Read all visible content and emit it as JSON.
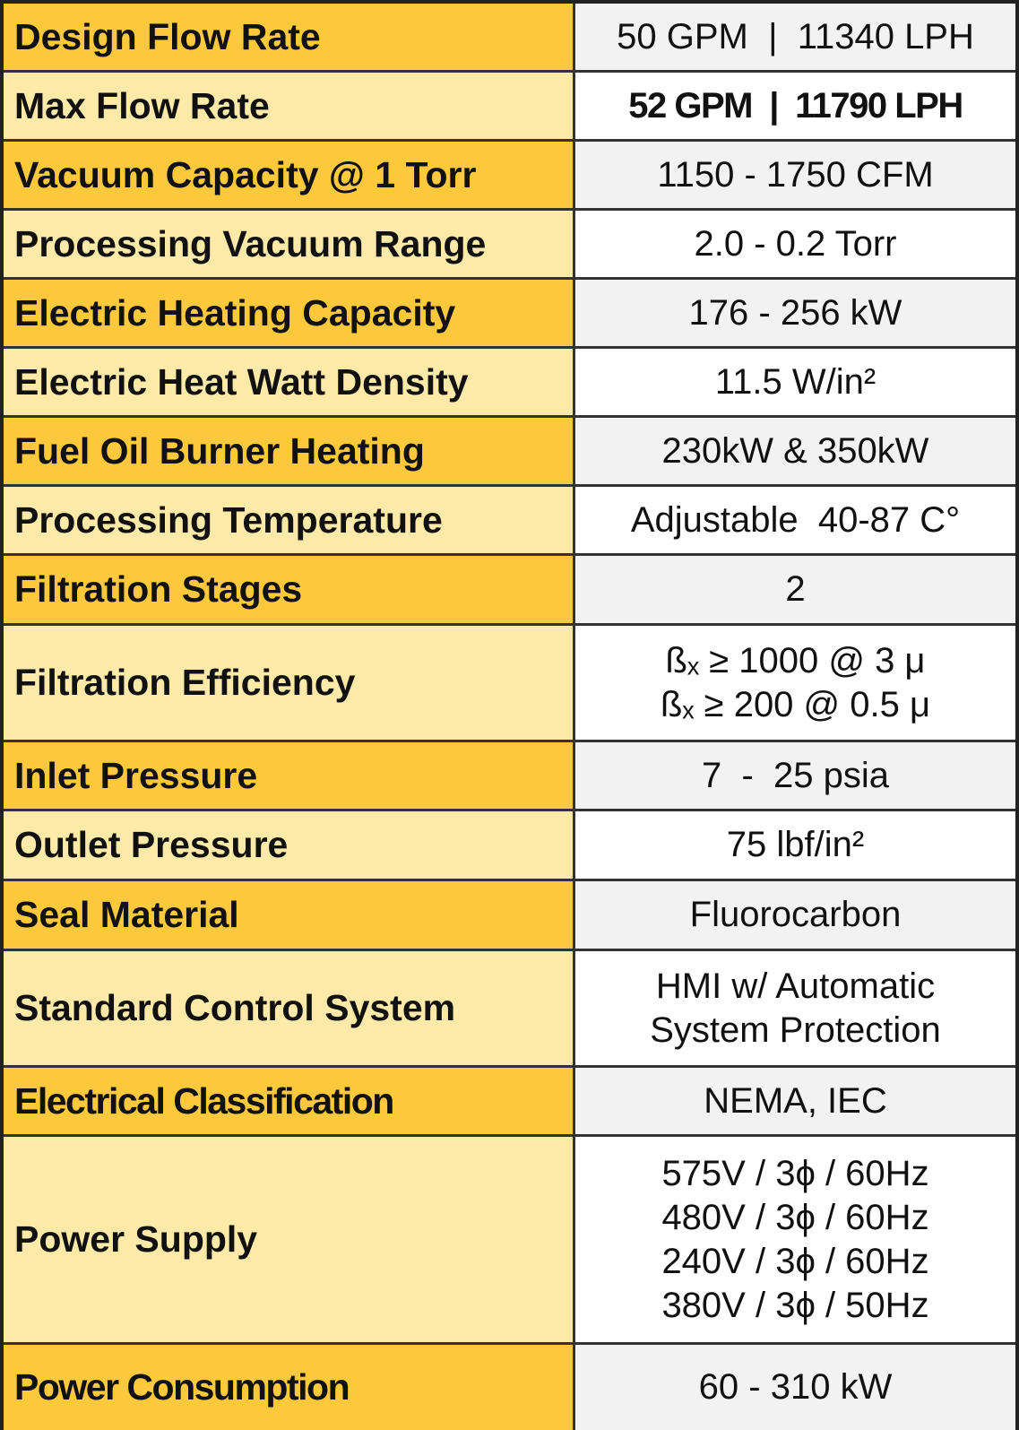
{
  "table": {
    "rows": [
      {
        "label": "Design Flow Rate",
        "value": [
          "50 GPM  |  11340 LPH"
        ]
      },
      {
        "label": "Max Flow Rate",
        "value": [
          "52 GPM  |  11790 LPH"
        ]
      },
      {
        "label": "Vacuum Capacity @ 1 Torr",
        "value": [
          "1150 - 1750 CFM"
        ]
      },
      {
        "label": "Processing Vacuum  Range",
        "value": [
          "2.0 - 0.2 Torr"
        ]
      },
      {
        "label": "Electric Heating Capacity",
        "value": [
          "176 - 256 kW"
        ]
      },
      {
        "label": "Electric Heat Watt Density",
        "value": [
          "11.5 W/in²"
        ]
      },
      {
        "label": "Fuel Oil Burner Heating",
        "value": [
          "230kW & 350kW"
        ]
      },
      {
        "label": "Processing Temperature",
        "value": [
          "Adjustable  40-87 C°"
        ]
      },
      {
        "label": "Filtration Stages",
        "value": [
          "2"
        ]
      },
      {
        "label": "Filtration Efficiency",
        "value": [
          "ßₓ ≥ 1000 @ 3 μ",
          "ßₓ ≥ 200 @ 0.5 μ"
        ]
      },
      {
        "label": "Inlet Pressure",
        "value": [
          "7  -  25 psia"
        ]
      },
      {
        "label": "Outlet Pressure",
        "value": [
          "75 lbf/in²"
        ]
      },
      {
        "label": "Seal Material",
        "value": [
          "Fluorocarbon"
        ]
      },
      {
        "label": "Standard Control System",
        "value": [
          "HMI w/ Automatic",
          "System Protection"
        ]
      },
      {
        "label": "Electrical Classification",
        "value": [
          "NEMA, IEC"
        ]
      },
      {
        "label": "Power Supply",
        "value": [
          "575V / 3ϕ / 60Hz",
          "480V / 3ϕ / 60Hz",
          "240V / 3ϕ / 60Hz",
          "380V / 3ϕ / 50Hz"
        ]
      },
      {
        "label": "Power Consumption",
        "value": [
          "60 - 310 kW"
        ]
      }
    ]
  }
}
